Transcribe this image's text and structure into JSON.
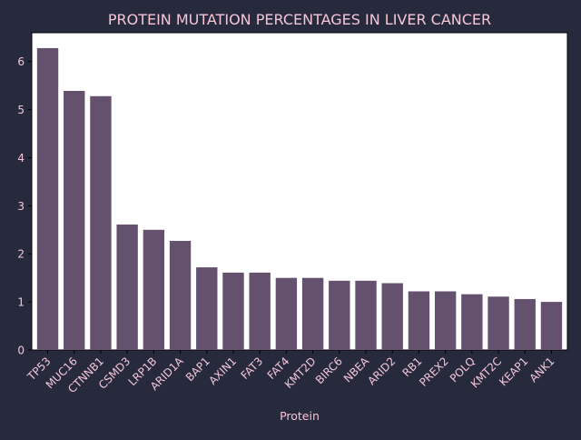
{
  "colors": {
    "background": "#272a3d",
    "plot_background": "#ffffff",
    "bar": "#63516e",
    "text": "#f4c6d8",
    "axis": "#000000"
  },
  "chart_data": {
    "type": "bar",
    "title": "PROTEIN MUTATION PERCENTAGES IN LIVER CANCER",
    "xlabel": "Protein",
    "ylabel": "",
    "ylim": [
      0,
      6.6
    ],
    "yticks": [
      0,
      1,
      2,
      3,
      4,
      5,
      6
    ],
    "grid": false,
    "categories": [
      "TP53",
      "MUC16",
      "CTNNB1",
      "CSMD3",
      "LRP1B",
      "ARID1A",
      "BAP1",
      "AXIN1",
      "FAT3",
      "FAT4",
      "KMT2D",
      "BIRC6",
      "NBEA",
      "ARID2",
      "RB1",
      "PREX2",
      "POLQ",
      "KMT2C",
      "KEAP1",
      "ANK1"
    ],
    "values": [
      6.28,
      5.39,
      5.28,
      2.61,
      2.5,
      2.27,
      1.72,
      1.61,
      1.61,
      1.5,
      1.5,
      1.44,
      1.44,
      1.39,
      1.22,
      1.22,
      1.16,
      1.11,
      1.06,
      1.0
    ]
  }
}
